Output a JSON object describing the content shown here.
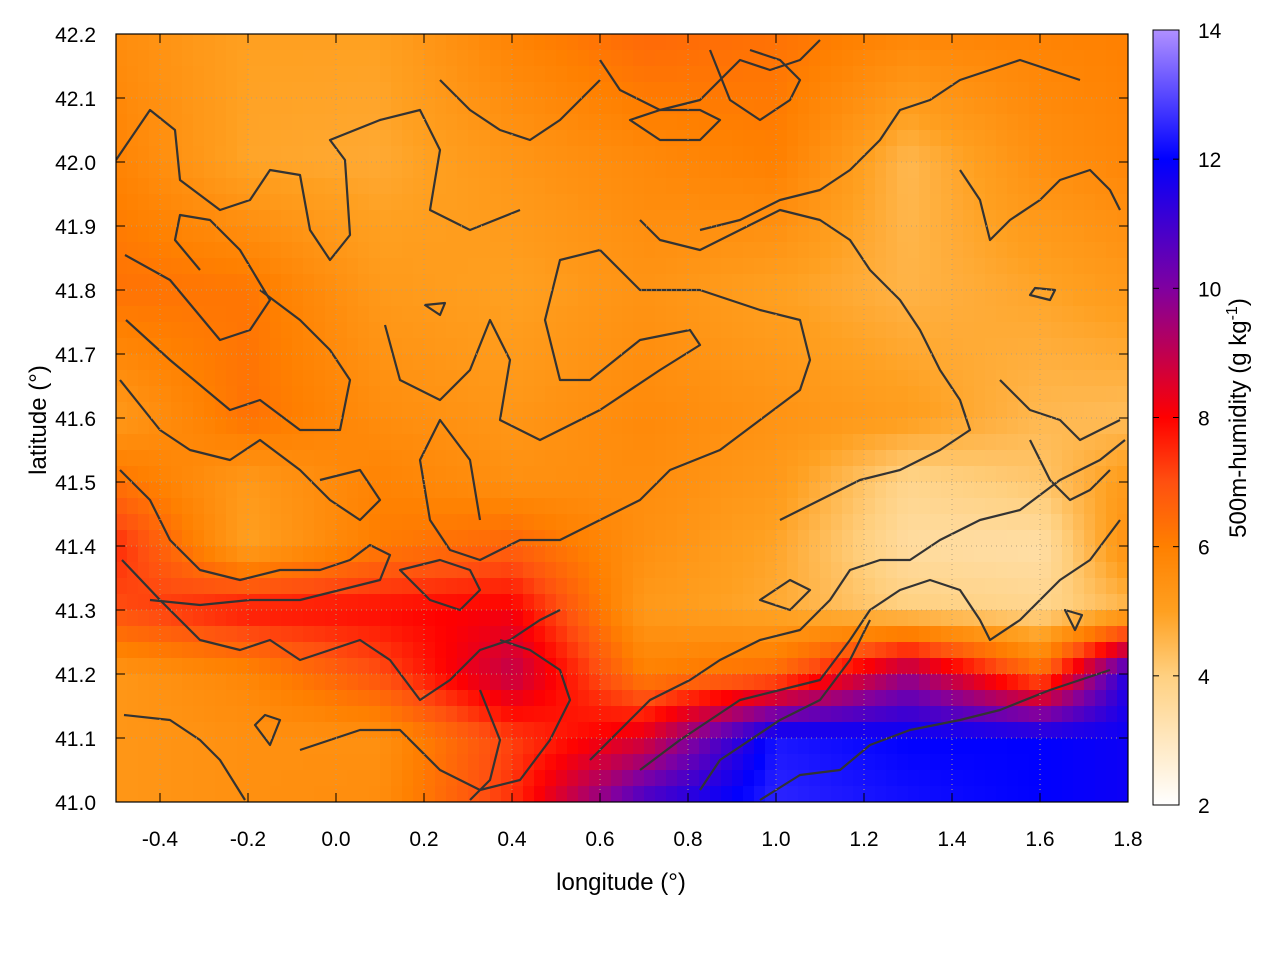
{
  "chart_data": {
    "type": "heatmap",
    "title": "",
    "xlabel": "longitude (°)",
    "ylabel": "latitude (°)",
    "xlim": [
      -0.5,
      1.8
    ],
    "ylim": [
      41.0,
      42.2
    ],
    "x_ticks": [
      "-0.4",
      "-0.2",
      "0.0",
      "0.2",
      "0.4",
      "0.6",
      "0.8",
      "1.0",
      "1.2",
      "1.4",
      "1.6",
      "1.8"
    ],
    "y_ticks": [
      "41.0",
      "41.1",
      "41.2",
      "41.3",
      "41.4",
      "41.5",
      "41.6",
      "41.7",
      "41.8",
      "41.9",
      "42.0",
      "42.1",
      "42.2"
    ],
    "grid": true,
    "colorbar": {
      "label_text": "500m-humidity (g kg",
      "label_exponent": "-1",
      "label_close": ")",
      "range": [
        2,
        14
      ],
      "ticks": [
        "2",
        "4",
        "6",
        "8",
        "10",
        "12",
        "14"
      ],
      "stops": [
        {
          "value": 2,
          "color": "#ffffff"
        },
        {
          "value": 4,
          "color": "#ffd080"
        },
        {
          "value": 5,
          "color": "#ffa020"
        },
        {
          "value": 6,
          "color": "#ff8000"
        },
        {
          "value": 7,
          "color": "#ff5010"
        },
        {
          "value": 8,
          "color": "#ff0000"
        },
        {
          "value": 10,
          "color": "#8000a0"
        },
        {
          "value": 12,
          "color": "#0000ff"
        },
        {
          "value": 14,
          "color": "#b090ff"
        }
      ]
    },
    "field_samples": {
      "lon": [
        -0.5,
        -0.2,
        0.1,
        0.4,
        0.7,
        1.0,
        1.3,
        1.6,
        1.8
      ],
      "lat": [
        42.2,
        42.0,
        41.8,
        41.6,
        41.5,
        41.4,
        41.3,
        41.2,
        41.1,
        41.0
      ],
      "values": [
        [
          5.6,
          5.0,
          5.0,
          5.9,
          6.5,
          6.3,
          5.8,
          5.9,
          6.0
        ],
        [
          5.9,
          4.9,
          4.8,
          5.3,
          5.7,
          6.0,
          4.5,
          5.5,
          5.8
        ],
        [
          6.3,
          6.2,
          5.2,
          5.0,
          5.4,
          5.0,
          4.6,
          4.9,
          5.2
        ],
        [
          5.2,
          6.3,
          5.6,
          5.3,
          5.7,
          5.4,
          5.1,
          4.5,
          4.4
        ],
        [
          6.3,
          5.2,
          5.9,
          5.5,
          5.6,
          5.2,
          3.8,
          4.2,
          5.2
        ],
        [
          7.5,
          5.0,
          6.1,
          6.6,
          5.5,
          4.9,
          3.5,
          3.4,
          5.5
        ],
        [
          7.0,
          7.8,
          7.9,
          8.1,
          5.2,
          4.8,
          4.0,
          3.8,
          4.5
        ],
        [
          5.3,
          5.8,
          7.0,
          9.0,
          6.0,
          6.5,
          9.5,
          6.5,
          11.5
        ],
        [
          5.3,
          5.5,
          5.5,
          7.2,
          8.5,
          12.3,
          12.0,
          12.0,
          11.8
        ],
        [
          5.3,
          5.5,
          5.6,
          7.4,
          11.0,
          12.5,
          12.2,
          12.0,
          11.8
        ]
      ]
    }
  }
}
